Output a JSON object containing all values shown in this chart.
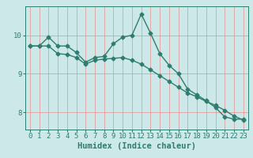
{
  "xlabel": "Humidex (Indice chaleur)",
  "line1_x": [
    0,
    1,
    2,
    3,
    4,
    5,
    6,
    7,
    8,
    9,
    10,
    11,
    12,
    13,
    14,
    15,
    16,
    17,
    18,
    19,
    20,
    21,
    22,
    23
  ],
  "line1_y": [
    9.72,
    9.72,
    9.95,
    9.72,
    9.72,
    9.55,
    9.3,
    9.42,
    9.45,
    9.78,
    9.95,
    10.0,
    10.55,
    10.05,
    9.52,
    9.22,
    9.0,
    8.6,
    8.45,
    8.3,
    8.12,
    7.88,
    7.82,
    7.82
  ],
  "line2_x": [
    0,
    1,
    2,
    3,
    4,
    5,
    6,
    7,
    8,
    9,
    10,
    11,
    12,
    13,
    14,
    15,
    16,
    17,
    18,
    19,
    20,
    21,
    22,
    23
  ],
  "line2_y": [
    9.72,
    9.72,
    9.72,
    9.52,
    9.5,
    9.42,
    9.25,
    9.35,
    9.38,
    9.4,
    9.42,
    9.35,
    9.25,
    9.1,
    8.95,
    8.8,
    8.65,
    8.5,
    8.4,
    8.28,
    8.18,
    8.05,
    7.9,
    7.8
  ],
  "line_color": "#2e7d6e",
  "bg_color": "#cce8e8",
  "grid_color_v": "#e89090",
  "grid_color_h": "#e89090",
  "ylim": [
    7.55,
    10.75
  ],
  "xlim": [
    -0.5,
    23.5
  ],
  "yticks": [
    8,
    9,
    10
  ],
  "xticks": [
    0,
    1,
    2,
    3,
    4,
    5,
    6,
    7,
    8,
    9,
    10,
    11,
    12,
    13,
    14,
    15,
    16,
    17,
    18,
    19,
    20,
    21,
    22,
    23
  ],
  "marker": "D",
  "marker_size": 2.5,
  "line_width": 1.0,
  "xlabel_fontsize": 7.5,
  "tick_fontsize": 6.5
}
